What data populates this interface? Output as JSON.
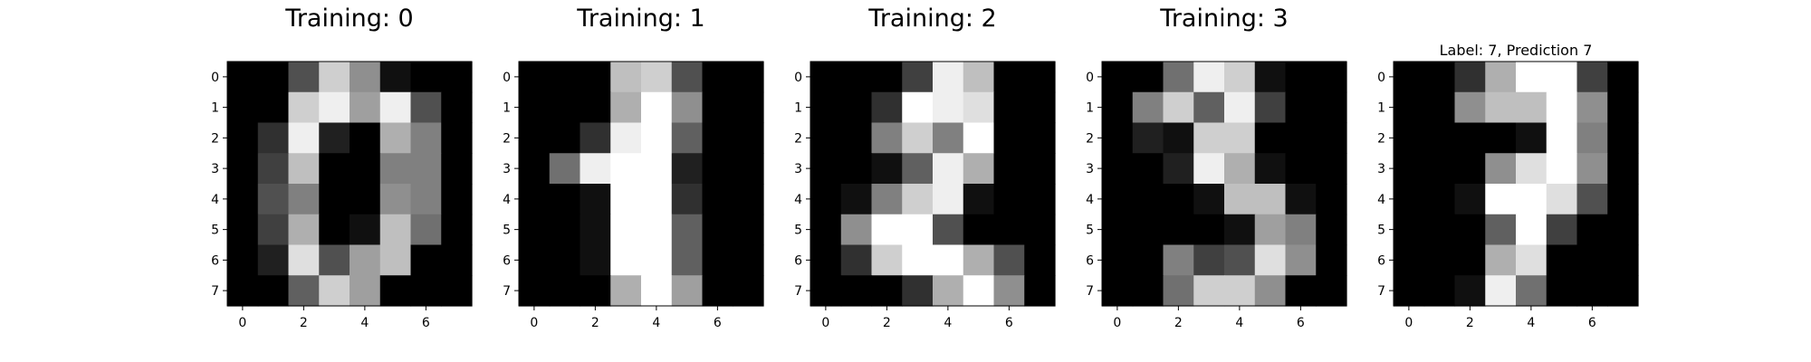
{
  "chart_data": [
    {
      "type": "heatmap",
      "title": "Training: 0",
      "colormap": "gray",
      "value_range": [
        0,
        16
      ],
      "x_ticks": [
        0,
        2,
        4,
        6
      ],
      "y_ticks": [
        0,
        1,
        2,
        3,
        4,
        5,
        6,
        7
      ],
      "grid": false,
      "values": [
        [
          0,
          0,
          5,
          13,
          9,
          1,
          0,
          0
        ],
        [
          0,
          0,
          13,
          15,
          10,
          15,
          5,
          0
        ],
        [
          0,
          3,
          15,
          2,
          0,
          11,
          8,
          0
        ],
        [
          0,
          4,
          12,
          0,
          0,
          8,
          8,
          0
        ],
        [
          0,
          5,
          8,
          0,
          0,
          9,
          8,
          0
        ],
        [
          0,
          4,
          11,
          0,
          1,
          12,
          7,
          0
        ],
        [
          0,
          2,
          14,
          5,
          10,
          12,
          0,
          0
        ],
        [
          0,
          0,
          6,
          13,
          10,
          0,
          0,
          0
        ]
      ]
    },
    {
      "type": "heatmap",
      "title": "Training: 1",
      "colormap": "gray",
      "value_range": [
        0,
        16
      ],
      "x_ticks": [
        0,
        2,
        4,
        6
      ],
      "y_ticks": [
        0,
        1,
        2,
        3,
        4,
        5,
        6,
        7
      ],
      "grid": false,
      "values": [
        [
          0,
          0,
          0,
          12,
          13,
          5,
          0,
          0
        ],
        [
          0,
          0,
          0,
          11,
          16,
          9,
          0,
          0
        ],
        [
          0,
          0,
          3,
          15,
          16,
          6,
          0,
          0
        ],
        [
          0,
          7,
          15,
          16,
          16,
          2,
          0,
          0
        ],
        [
          0,
          0,
          1,
          16,
          16,
          3,
          0,
          0
        ],
        [
          0,
          0,
          1,
          16,
          16,
          6,
          0,
          0
        ],
        [
          0,
          0,
          1,
          16,
          16,
          6,
          0,
          0
        ],
        [
          0,
          0,
          0,
          11,
          16,
          10,
          0,
          0
        ]
      ]
    },
    {
      "type": "heatmap",
      "title": "Training: 2",
      "colormap": "gray",
      "value_range": [
        0,
        16
      ],
      "x_ticks": [
        0,
        2,
        4,
        6
      ],
      "y_ticks": [
        0,
        1,
        2,
        3,
        4,
        5,
        6,
        7
      ],
      "grid": false,
      "values": [
        [
          0,
          0,
          0,
          4,
          15,
          12,
          0,
          0
        ],
        [
          0,
          0,
          3,
          16,
          15,
          14,
          0,
          0
        ],
        [
          0,
          0,
          8,
          13,
          8,
          16,
          0,
          0
        ],
        [
          0,
          0,
          1,
          6,
          15,
          11,
          0,
          0
        ],
        [
          0,
          1,
          8,
          13,
          15,
          1,
          0,
          0
        ],
        [
          0,
          9,
          16,
          16,
          5,
          0,
          0,
          0
        ],
        [
          0,
          3,
          13,
          16,
          16,
          11,
          5,
          0
        ],
        [
          0,
          0,
          0,
          3,
          11,
          16,
          9,
          0
        ]
      ]
    },
    {
      "type": "heatmap",
      "title": "Training: 3",
      "colormap": "gray",
      "value_range": [
        0,
        16
      ],
      "x_ticks": [
        0,
        2,
        4,
        6
      ],
      "y_ticks": [
        0,
        1,
        2,
        3,
        4,
        5,
        6,
        7
      ],
      "grid": false,
      "values": [
        [
          0,
          0,
          7,
          15,
          13,
          1,
          0,
          0
        ],
        [
          0,
          8,
          13,
          6,
          15,
          4,
          0,
          0
        ],
        [
          0,
          2,
          1,
          13,
          13,
          0,
          0,
          0
        ],
        [
          0,
          0,
          2,
          15,
          11,
          1,
          0,
          0
        ],
        [
          0,
          0,
          0,
          1,
          12,
          12,
          1,
          0
        ],
        [
          0,
          0,
          0,
          0,
          1,
          10,
          8,
          0
        ],
        [
          0,
          0,
          8,
          4,
          5,
          14,
          9,
          0
        ],
        [
          0,
          0,
          7,
          13,
          13,
          9,
          0,
          0
        ]
      ]
    },
    {
      "type": "heatmap",
      "title": "Label: 7, Prediction 7",
      "colormap": "gray",
      "value_range": [
        0,
        16
      ],
      "x_ticks": [
        0,
        2,
        4,
        6
      ],
      "y_ticks": [
        0,
        1,
        2,
        3,
        4,
        5,
        6,
        7
      ],
      "grid": false,
      "values": [
        [
          0,
          0,
          3,
          11,
          16,
          16,
          4,
          0
        ],
        [
          0,
          0,
          9,
          12,
          12,
          16,
          9,
          0
        ],
        [
          0,
          0,
          0,
          0,
          1,
          16,
          8,
          0
        ],
        [
          0,
          0,
          0,
          9,
          14,
          16,
          9,
          0
        ],
        [
          0,
          0,
          1,
          16,
          16,
          14,
          5,
          0
        ],
        [
          0,
          0,
          0,
          6,
          16,
          4,
          0,
          0
        ],
        [
          0,
          0,
          0,
          11,
          14,
          0,
          0,
          0
        ],
        [
          0,
          0,
          1,
          15,
          7,
          0,
          0,
          0
        ]
      ]
    }
  ]
}
